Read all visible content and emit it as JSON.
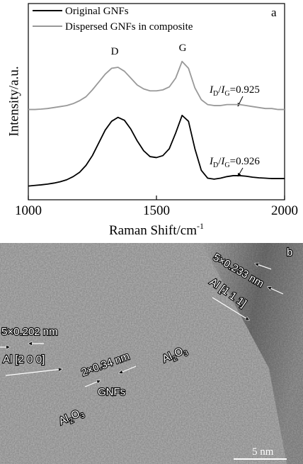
{
  "chart_data": {
    "type": "line",
    "x_label": "Raman Shift/cm",
    "x_label_superscript": "-1",
    "y_label": "Intensity/a.u.",
    "panel_label": "a",
    "legend": "upper left",
    "x": [
      1000,
      1025,
      1050,
      1075,
      1100,
      1125,
      1150,
      1175,
      1200,
      1225,
      1250,
      1275,
      1300,
      1325,
      1350,
      1375,
      1400,
      1425,
      1450,
      1475,
      1500,
      1525,
      1550,
      1575,
      1600,
      1625,
      1650,
      1675,
      1700,
      1725,
      1750,
      1775,
      1800,
      1825,
      1850,
      1875,
      1900,
      1925,
      1950,
      1975,
      2000
    ],
    "series": [
      {
        "name": "Original GNFs",
        "color": "#000000",
        "values": [
          7.0,
          7.3,
          7.6,
          8.0,
          8.5,
          9.2,
          10.2,
          11.8,
          14.0,
          17.5,
          22.5,
          29,
          35.5,
          40,
          42,
          40.5,
          36,
          30,
          25,
          22,
          21.5,
          22.5,
          26,
          34,
          43,
          40,
          26,
          15,
          11,
          10.5,
          11,
          11.8,
          12.3,
          12.3,
          12,
          11.5,
          11.2,
          11,
          10.8,
          10.8,
          10.8
        ]
      },
      {
        "name": "Dispersed GNFs in composite",
        "color": "#999999",
        "values": [
          46,
          46,
          46.2,
          46.5,
          47,
          47.5,
          48,
          49,
          50.5,
          52.5,
          56,
          60,
          64,
          67,
          67.5,
          65.5,
          62,
          58.5,
          56.5,
          55.5,
          55.5,
          56,
          57.5,
          62,
          70.5,
          67,
          57,
          51,
          48.5,
          48,
          48,
          48.5,
          48.5,
          48.5,
          48,
          47.5,
          47,
          46.5,
          46.5,
          46,
          46
        ]
      }
    ],
    "peak_labels": [
      "D",
      "G"
    ],
    "ratio_labels": [
      [
        "I",
        "D",
        "/",
        "I",
        "G",
        "=0.925"
      ],
      [
        "I",
        "D",
        "/",
        "I",
        "G",
        "=0.926"
      ]
    ],
    "xlim": [
      1000,
      2000
    ],
    "xticks": [
      1000,
      1500,
      2000
    ],
    "ylim": [
      0,
      100
    ]
  },
  "image_panel": {
    "panel_label": "b",
    "annotations": [
      "5×0.233 nm",
      "Al [1 1 1]",
      "5×0.202 nm",
      "Al [2 0 0]",
      "2×0.34 nm",
      "GNFs"
    ],
    "phase_labels": [
      [
        "Al",
        "2",
        "O",
        "3"
      ],
      [
        "Al",
        "2",
        "O",
        "3"
      ]
    ],
    "scale_bar": "5 nm"
  }
}
